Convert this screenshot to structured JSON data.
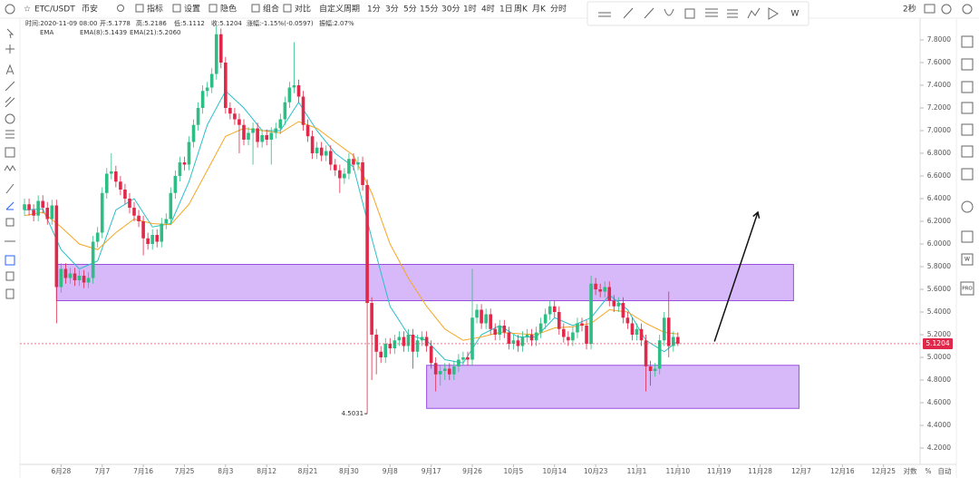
{
  "toolbar": {
    "symbol": "ETC/USDT",
    "exchange": "币安",
    "items": [
      "指标",
      "设置",
      "隐色",
      "组合",
      "对比",
      "自定义周期"
    ],
    "intervals": [
      "1分",
      "3分",
      "5分",
      "15分",
      "30分",
      "1时",
      "4时",
      "1日",
      "周K",
      "月K",
      "分时"
    ],
    "active_interval": 7,
    "refresh": "2秒"
  },
  "drawing_toolbar": {
    "last": "W"
  },
  "sidebar": [
    "W",
    "PRO"
  ],
  "axis_controls": [
    "对数",
    "%",
    "自动"
  ],
  "chart_data": {
    "type": "candlestick",
    "info": [
      "时间:2020-11-09 08:00",
      "开:5.1778",
      "高:5.2186",
      "低:5.1112",
      "收:5.1204",
      "涨幅:-1.15%(-0.0597)",
      "振幅:2.07%"
    ],
    "indicator": "EMA",
    "up_color": "#2ebd85",
    "down_color": "#e0294a",
    "xlim": [
      0,
      197
    ],
    "ylim": [
      4.056,
      7.928
    ],
    "grid": false,
    "xticks": [
      {
        "value": 9,
        "label": "6月28"
      },
      {
        "value": 18,
        "label": "7月7"
      },
      {
        "value": 27,
        "label": "7月16"
      },
      {
        "value": 36,
        "label": "7月25"
      },
      {
        "value": 45,
        "label": "8月3"
      },
      {
        "value": 54,
        "label": "8月12"
      },
      {
        "value": 63,
        "label": "8月21"
      },
      {
        "value": 72,
        "label": "8月30"
      },
      {
        "value": 81,
        "label": "9月8"
      },
      {
        "value": 90,
        "label": "9月17"
      },
      {
        "value": 99,
        "label": "9月26"
      },
      {
        "value": 108,
        "label": "10月5"
      },
      {
        "value": 117,
        "label": "10月14"
      },
      {
        "value": 126,
        "label": "10月23"
      },
      {
        "value": 135,
        "label": "11月1"
      },
      {
        "value": 144,
        "label": "11月10"
      },
      {
        "value": 153,
        "label": "11月19"
      },
      {
        "value": 162,
        "label": "11月28"
      },
      {
        "value": 171,
        "label": "12月7"
      },
      {
        "value": 180,
        "label": "12月16"
      },
      {
        "value": 189,
        "label": "12月25"
      }
    ],
    "yticks": [
      {
        "value": 4.2,
        "label": "4.2000"
      },
      {
        "value": 4.4,
        "label": "4.4000"
      },
      {
        "value": 4.6,
        "label": "4.6000"
      },
      {
        "value": 4.8,
        "label": "4.8000"
      },
      {
        "value": 5,
        "label": "5.0000"
      },
      {
        "value": 5.2,
        "label": "5.2000"
      },
      {
        "value": 5.4,
        "label": "5.4000"
      },
      {
        "value": 5.6,
        "label": "5.6000"
      },
      {
        "value": 5.8,
        "label": "5.8000"
      },
      {
        "value": 6,
        "label": "6.0000"
      },
      {
        "value": 6.2,
        "label": "6.2000"
      },
      {
        "value": 6.4,
        "label": "6.4000"
      },
      {
        "value": 6.6,
        "label": "6.6000"
      },
      {
        "value": 6.8,
        "label": "6.8000"
      },
      {
        "value": 7,
        "label": "7.0000"
      },
      {
        "value": 7.2,
        "label": "7.2000"
      },
      {
        "value": 7.4,
        "label": "7.4000"
      },
      {
        "value": 7.6,
        "label": "7.6000"
      },
      {
        "value": 7.8,
        "label": "7.8000"
      }
    ],
    "x": [
      1,
      2,
      3,
      4,
      5,
      6,
      7,
      8,
      9,
      10,
      11,
      12,
      13,
      14,
      15,
      16,
      17,
      18,
      19,
      20,
      21,
      22,
      23,
      24,
      25,
      26,
      27,
      28,
      29,
      30,
      31,
      32,
      33,
      34,
      35,
      36,
      37,
      38,
      39,
      40,
      41,
      42,
      43,
      44,
      45,
      46,
      47,
      48,
      49,
      50,
      51,
      52,
      53,
      54,
      55,
      56,
      57,
      58,
      59,
      60,
      61,
      62,
      63,
      64,
      65,
      66,
      67,
      68,
      69,
      70,
      71,
      72,
      73,
      74,
      75,
      76,
      77,
      78,
      79,
      80,
      81,
      82,
      83,
      84,
      85,
      86,
      87,
      88,
      89,
      90,
      91,
      92,
      93,
      94,
      95,
      96,
      97,
      98,
      99,
      100,
      101,
      102,
      103,
      104,
      105,
      106,
      107,
      108,
      109,
      110,
      111,
      112,
      113,
      114,
      115,
      116,
      117,
      118,
      119,
      120,
      121,
      122,
      123,
      124,
      125,
      126,
      127,
      128,
      129,
      130,
      131,
      132,
      133,
      134,
      135,
      136,
      137,
      138,
      139,
      140,
      141,
      142,
      143,
      144
    ],
    "candles": [
      [
        6.3,
        6.4,
        6.25,
        6.35
      ],
      [
        6.35,
        6.4,
        6.25,
        6.3
      ],
      [
        6.3,
        6.35,
        6.2,
        6.25
      ],
      [
        6.25,
        6.43,
        6.2,
        6.38
      ],
      [
        6.38,
        6.43,
        6.27,
        6.32
      ],
      [
        6.32,
        6.37,
        6.17,
        6.22
      ],
      [
        6.22,
        6.39,
        6.17,
        6.34
      ],
      [
        6.34,
        6.39,
        5.3,
        5.62
      ],
      [
        5.62,
        5.83,
        5.57,
        5.78
      ],
      [
        5.78,
        5.83,
        5.65,
        5.7
      ],
      [
        5.7,
        5.79,
        5.65,
        5.74
      ],
      [
        5.74,
        5.79,
        5.63,
        5.68
      ],
      [
        5.68,
        5.77,
        5.63,
        5.72
      ],
      [
        5.72,
        5.77,
        5.61,
        5.66
      ],
      [
        5.66,
        5.75,
        5.61,
        5.7
      ],
      [
        5.7,
        6.07,
        5.65,
        6.02
      ],
      [
        6.02,
        6.15,
        5.97,
        6.1
      ],
      [
        6.1,
        6.5,
        6.05,
        6.45
      ],
      [
        6.45,
        6.67,
        6.4,
        6.62
      ],
      [
        6.62,
        6.8,
        6.57,
        6.64
      ],
      [
        6.64,
        6.69,
        6.5,
        6.55
      ],
      [
        6.55,
        6.6,
        6.43,
        6.48
      ],
      [
        6.48,
        6.53,
        6.35,
        6.4
      ],
      [
        6.4,
        6.45,
        6.27,
        6.32
      ],
      [
        6.32,
        6.37,
        6.2,
        6.25
      ],
      [
        6.25,
        6.3,
        6.15,
        6.2
      ],
      [
        6.2,
        6.25,
        5.9,
        6.05
      ],
      [
        6.05,
        6.1,
        5.95,
        6.0
      ],
      [
        6.0,
        6.13,
        5.95,
        6.08
      ],
      [
        6.08,
        6.13,
        5.97,
        6.02
      ],
      [
        6.02,
        6.23,
        5.97,
        6.18
      ],
      [
        6.18,
        6.27,
        6.13,
        6.22
      ],
      [
        6.22,
        6.5,
        6.17,
        6.45
      ],
      [
        6.45,
        6.65,
        6.4,
        6.6
      ],
      [
        6.6,
        6.77,
        6.55,
        6.72
      ],
      [
        6.72,
        6.77,
        6.65,
        6.7
      ],
      [
        6.7,
        6.95,
        6.65,
        6.9
      ],
      [
        6.9,
        7.1,
        6.85,
        7.05
      ],
      [
        7.05,
        7.25,
        7.0,
        7.2
      ],
      [
        7.2,
        7.4,
        7.15,
        7.35
      ],
      [
        7.35,
        7.43,
        7.3,
        7.38
      ],
      [
        7.38,
        7.55,
        7.33,
        7.5
      ],
      [
        7.5,
        7.92,
        7.45,
        7.85
      ],
      [
        7.85,
        7.9,
        7.55,
        7.6
      ],
      [
        7.6,
        7.65,
        7.15,
        7.2
      ],
      [
        7.2,
        7.25,
        7.1,
        7.15
      ],
      [
        7.15,
        7.2,
        7.05,
        7.1
      ],
      [
        7.1,
        7.15,
        6.8,
        7.05
      ],
      [
        7.05,
        7.1,
        6.87,
        6.92
      ],
      [
        6.92,
        7.03,
        6.87,
        6.98
      ],
      [
        6.98,
        7.07,
        6.7,
        7.02
      ],
      [
        7.02,
        7.07,
        6.85,
        6.9
      ],
      [
        6.9,
        7.01,
        6.85,
        6.96
      ],
      [
        6.96,
        7.01,
        6.87,
        6.92
      ],
      [
        6.92,
        7.03,
        6.7,
        6.98
      ],
      [
        6.98,
        7.07,
        6.93,
        7.02
      ],
      [
        7.02,
        7.15,
        6.97,
        7.1
      ],
      [
        7.1,
        7.3,
        7.05,
        7.25
      ],
      [
        7.25,
        7.43,
        7.2,
        7.38
      ],
      [
        7.38,
        7.78,
        7.33,
        7.4
      ],
      [
        7.4,
        7.45,
        7.25,
        7.3
      ],
      [
        7.3,
        7.35,
        7.0,
        7.05
      ],
      [
        7.05,
        7.1,
        6.9,
        6.95
      ],
      [
        6.95,
        7.0,
        6.75,
        6.8
      ],
      [
        6.8,
        6.9,
        6.75,
        6.85
      ],
      [
        6.85,
        6.9,
        6.73,
        6.78
      ],
      [
        6.78,
        6.87,
        6.73,
        6.82
      ],
      [
        6.82,
        6.87,
        6.65,
        6.7
      ],
      [
        6.7,
        6.75,
        6.6,
        6.65
      ],
      [
        6.65,
        6.7,
        6.45,
        6.58
      ],
      [
        6.58,
        6.67,
        6.53,
        6.62
      ],
      [
        6.62,
        6.8,
        6.57,
        6.75
      ],
      [
        6.75,
        6.8,
        6.65,
        6.7
      ],
      [
        6.7,
        6.77,
        6.65,
        6.72
      ],
      [
        6.72,
        6.77,
        6.47,
        6.52
      ],
      [
        6.52,
        6.57,
        4.5031,
        5.48
      ],
      [
        5.48,
        5.53,
        4.8,
        5.2
      ],
      [
        5.2,
        5.25,
        4.85,
        5.05
      ],
      [
        5.05,
        5.1,
        4.95,
        5.0
      ],
      [
        5.0,
        5.17,
        4.95,
        5.12
      ],
      [
        5.12,
        5.17,
        5.03,
        5.08
      ],
      [
        5.08,
        5.2,
        5.03,
        5.15
      ],
      [
        5.15,
        5.23,
        5.1,
        5.18
      ],
      [
        5.18,
        5.23,
        5.05,
        5.1
      ],
      [
        5.1,
        5.25,
        5.05,
        5.2
      ],
      [
        5.2,
        5.25,
        4.9,
        5.05
      ],
      [
        5.05,
        5.2,
        5.0,
        5.15
      ],
      [
        5.15,
        5.23,
        5.1,
        5.18
      ],
      [
        5.18,
        5.23,
        5.05,
        5.1
      ],
      [
        5.1,
        5.15,
        4.9,
        4.95
      ],
      [
        4.95,
        5.0,
        4.7,
        4.85
      ],
      [
        4.85,
        4.93,
        4.75,
        4.88
      ],
      [
        4.88,
        4.95,
        4.8,
        4.9
      ],
      [
        4.9,
        4.95,
        4.8,
        4.85
      ],
      [
        4.85,
        4.97,
        4.8,
        4.92
      ],
      [
        4.92,
        5.03,
        4.87,
        4.98
      ],
      [
        4.98,
        5.05,
        4.93,
        5.0
      ],
      [
        5.0,
        5.05,
        4.93,
        4.98
      ],
      [
        4.98,
        5.78,
        4.93,
        5.35
      ],
      [
        5.35,
        5.47,
        5.3,
        5.42
      ],
      [
        5.42,
        5.47,
        5.25,
        5.3
      ],
      [
        5.3,
        5.43,
        5.25,
        5.38
      ],
      [
        5.38,
        5.43,
        5.2,
        5.25
      ],
      [
        5.25,
        5.3,
        5.15,
        5.2
      ],
      [
        5.2,
        5.33,
        5.15,
        5.28
      ],
      [
        5.28,
        5.33,
        5.17,
        5.22
      ],
      [
        5.22,
        5.27,
        5.07,
        5.12
      ],
      [
        5.12,
        5.2,
        5.07,
        5.15
      ],
      [
        5.15,
        5.2,
        5.05,
        5.1
      ],
      [
        5.1,
        5.23,
        5.05,
        5.18
      ],
      [
        5.18,
        5.25,
        5.13,
        5.2
      ],
      [
        5.2,
        5.25,
        5.1,
        5.15
      ],
      [
        5.15,
        5.27,
        5.1,
        5.22
      ],
      [
        5.22,
        5.35,
        5.17,
        5.3
      ],
      [
        5.3,
        5.43,
        5.25,
        5.38
      ],
      [
        5.38,
        5.5,
        5.33,
        5.45
      ],
      [
        5.45,
        5.5,
        5.35,
        5.4
      ],
      [
        5.4,
        5.45,
        5.2,
        5.25
      ],
      [
        5.25,
        5.3,
        5.13,
        5.18
      ],
      [
        5.18,
        5.23,
        5.1,
        5.15
      ],
      [
        5.15,
        5.27,
        5.1,
        5.22
      ],
      [
        5.22,
        5.35,
        5.17,
        5.3
      ],
      [
        5.3,
        5.35,
        5.23,
        5.28
      ],
      [
        5.28,
        5.33,
        5.07,
        5.12
      ],
      [
        5.12,
        5.72,
        5.07,
        5.65
      ],
      [
        5.65,
        5.7,
        5.55,
        5.6
      ],
      [
        5.6,
        5.65,
        5.53,
        5.58
      ],
      [
        5.58,
        5.67,
        5.53,
        5.62
      ],
      [
        5.62,
        5.67,
        5.45,
        5.5
      ],
      [
        5.5,
        5.55,
        5.4,
        5.45
      ],
      [
        5.45,
        5.53,
        5.4,
        5.48
      ],
      [
        5.48,
        5.53,
        5.3,
        5.35
      ],
      [
        5.35,
        5.4,
        5.25,
        5.3
      ],
      [
        5.3,
        5.35,
        5.15,
        5.2
      ],
      [
        5.2,
        5.3,
        5.15,
        5.25
      ],
      [
        5.25,
        5.3,
        5.1,
        5.15
      ],
      [
        5.15,
        5.2,
        4.7,
        4.92
      ],
      [
        4.92,
        4.97,
        4.75,
        4.88
      ],
      [
        4.88,
        4.95,
        4.83,
        4.9
      ],
      [
        4.9,
        5.2,
        4.85,
        5.15
      ],
      [
        5.15,
        5.4,
        5.1,
        5.35
      ],
      [
        5.35,
        5.58,
        5.0,
        5.1
      ],
      [
        5.1,
        5.23,
        5.05,
        5.18
      ],
      [
        5.18,
        5.22,
        5.1,
        5.1204
      ]
    ],
    "ema": [
      {
        "name": "EMA(8):5.1439",
        "color": "#2bbfc9",
        "x": [
          1,
          5,
          9,
          13,
          17,
          21,
          25,
          29,
          33,
          37,
          41,
          45,
          49,
          53,
          57,
          61,
          65,
          69,
          73,
          77,
          81,
          85,
          89,
          93,
          97,
          101,
          105,
          109,
          113,
          117,
          121,
          125,
          129,
          133,
          137,
          141,
          144
        ],
        "values": [
          6.3,
          6.31,
          5.95,
          5.78,
          5.85,
          6.3,
          6.4,
          6.15,
          6.18,
          6.55,
          7.05,
          7.35,
          7.2,
          7.0,
          7.0,
          7.25,
          7.0,
          6.8,
          6.68,
          6.05,
          5.45,
          5.2,
          5.15,
          4.98,
          4.95,
          5.2,
          5.28,
          5.18,
          5.18,
          5.35,
          5.28,
          5.35,
          5.55,
          5.42,
          5.15,
          5.05,
          5.1439
        ]
      },
      {
        "name": "EMA(21):5.2060",
        "color": "#f5a623",
        "x": [
          1,
          5,
          9,
          13,
          17,
          21,
          25,
          29,
          33,
          37,
          41,
          45,
          49,
          53,
          57,
          61,
          65,
          69,
          73,
          77,
          81,
          85,
          89,
          93,
          97,
          101,
          105,
          109,
          113,
          117,
          121,
          125,
          129,
          133,
          137,
          141,
          144
        ],
        "values": [
          6.25,
          6.28,
          6.15,
          6.0,
          5.95,
          6.1,
          6.22,
          6.18,
          6.17,
          6.35,
          6.65,
          6.95,
          7.02,
          7.0,
          6.98,
          7.08,
          7.02,
          6.9,
          6.78,
          6.45,
          6.0,
          5.7,
          5.45,
          5.25,
          5.15,
          5.18,
          5.22,
          5.21,
          5.2,
          5.26,
          5.27,
          5.3,
          5.42,
          5.4,
          5.3,
          5.22,
          5.206
        ]
      }
    ],
    "zones": [
      {
        "x": [
          8,
          169.3
        ],
        "y": [
          5.5,
          5.82
        ]
      },
      {
        "x": [
          89,
          170.5
        ],
        "y": [
          4.55,
          4.93
        ]
      }
    ],
    "arrow": {
      "x": [
        152,
        161.5
      ],
      "y": [
        5.14,
        6.28
      ]
    }
  }
}
